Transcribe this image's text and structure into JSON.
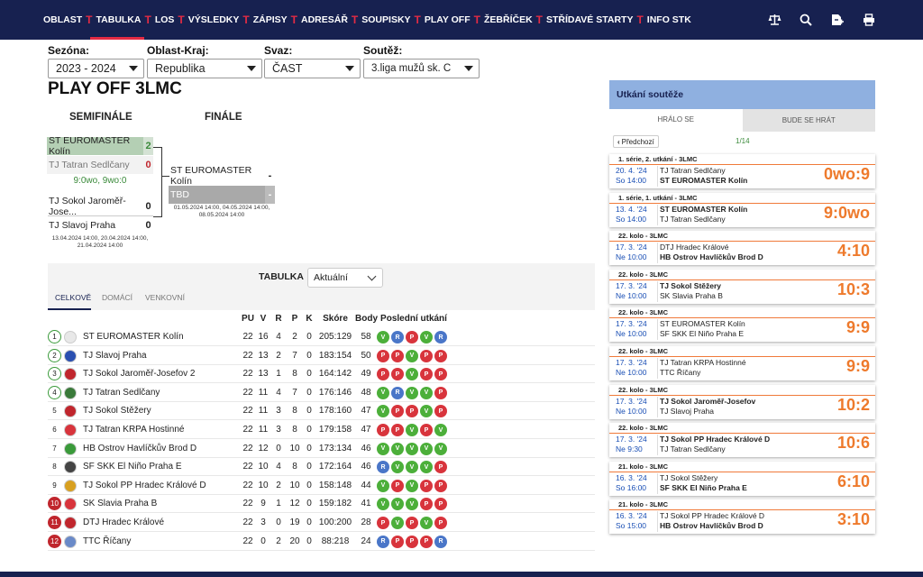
{
  "nav": {
    "items": [
      "OBLAST",
      "TABULKA",
      "LOS",
      "VÝSLEDKY",
      "ZÁPISY",
      "ADRESÁŘ",
      "SOUPISKY",
      "PLAY OFF",
      "ŽEBŘÍČEK",
      "STŘÍDAVÉ STARTY",
      "INFO STK"
    ],
    "active_index": 1,
    "separator": "T",
    "icons": [
      "scales-icon",
      "search-icon",
      "login-icon",
      "print-icon"
    ]
  },
  "filters": {
    "season": {
      "label": "Sezóna:",
      "value": "2023 - 2024"
    },
    "region": {
      "label": "Oblast-Kraj:",
      "value": "Republika"
    },
    "union": {
      "label": "Svaz:",
      "value": "ČAST"
    },
    "competition": {
      "label": "Soutěž:",
      "value": "3.liga mužů sk. C"
    }
  },
  "page_title": "PLAY OFF 3LMC",
  "bracket": {
    "semifinal_title": "SEMIFINÁLE",
    "final_title": "FINÁLE",
    "sf1": {
      "team1": "ST EUROMASTER Kolín",
      "score1": "2",
      "team2": "TJ Tatran Sedlčany",
      "score2": "0",
      "note": "9:0wo, 9wo:0"
    },
    "sf2": {
      "team1": "TJ Sokol Jaroměř-Jose...",
      "score1": "0",
      "team2": "TJ Slavoj Praha",
      "score2": "0",
      "dates": "13.04.2024 14:00, 20.04.2024 14:00, 21.04.2024 14:00"
    },
    "final": {
      "team1": "ST EUROMASTER Kolín",
      "score1": "-",
      "team2": "TBD",
      "score2": "-",
      "dates": "01.05.2024 14:00, 04.05.2024 14:00, 08.05.2024 14:00"
    }
  },
  "table": {
    "title": "TABULKA",
    "select_value": "Aktuální",
    "tabs": [
      "CELKOVĚ",
      "DOMÁCÍ",
      "VENKOVNÍ"
    ],
    "columns": [
      "PU",
      "V",
      "R",
      "P",
      "K",
      "Skóre",
      "Body",
      "Poslední utkání"
    ],
    "rows": [
      {
        "rank": "1",
        "team": "ST EUROMASTER Kolín",
        "pu": "22",
        "v": "16",
        "r": "4",
        "p": "2",
        "k": "0",
        "score": "205:129",
        "points": "58",
        "form": [
          "V",
          "R",
          "P",
          "V",
          "R"
        ],
        "rank_style": "g",
        "logo_color": "#e8e8e8"
      },
      {
        "rank": "2",
        "team": "TJ Slavoj Praha",
        "pu": "22",
        "v": "13",
        "r": "2",
        "p": "7",
        "k": "0",
        "score": "183:154",
        "points": "50",
        "form": [
          "P",
          "P",
          "V",
          "P",
          "P"
        ],
        "rank_style": "g",
        "logo_color": "#2a4fb0"
      },
      {
        "rank": "3",
        "team": "TJ Sokol Jaroměř-Josefov 2",
        "pu": "22",
        "v": "13",
        "r": "1",
        "p": "8",
        "k": "0",
        "score": "164:142",
        "points": "49",
        "form": [
          "P",
          "P",
          "V",
          "P",
          "P"
        ],
        "rank_style": "g",
        "logo_color": "#c0262d"
      },
      {
        "rank": "4",
        "team": "TJ Tatran Sedlčany",
        "pu": "22",
        "v": "11",
        "r": "4",
        "p": "7",
        "k": "0",
        "score": "176:146",
        "points": "48",
        "form": [
          "V",
          "R",
          "V",
          "V",
          "P"
        ],
        "rank_style": "g",
        "logo_color": "#3a7a3a"
      },
      {
        "rank": "5",
        "team": "TJ Sokol Stěžery",
        "pu": "22",
        "v": "11",
        "r": "3",
        "p": "8",
        "k": "0",
        "score": "178:160",
        "points": "47",
        "form": [
          "V",
          "P",
          "P",
          "V",
          "P"
        ],
        "rank_style": "n",
        "logo_color": "#c0262d"
      },
      {
        "rank": "6",
        "team": "TJ Tatran KRPA Hostinné",
        "pu": "22",
        "v": "11",
        "r": "3",
        "p": "8",
        "k": "0",
        "score": "179:158",
        "points": "47",
        "form": [
          "P",
          "P",
          "V",
          "P",
          "V"
        ],
        "rank_style": "n",
        "logo_color": "#d8343c"
      },
      {
        "rank": "7",
        "team": "HB Ostrov Havlíčkův Brod D",
        "pu": "22",
        "v": "12",
        "r": "0",
        "p": "10",
        "k": "0",
        "score": "173:134",
        "points": "46",
        "form": [
          "V",
          "V",
          "V",
          "V",
          "V"
        ],
        "rank_style": "n",
        "logo_color": "#3a9a3a"
      },
      {
        "rank": "8",
        "team": "SF SKK El Niño Praha E",
        "pu": "22",
        "v": "10",
        "r": "4",
        "p": "8",
        "k": "0",
        "score": "172:164",
        "points": "46",
        "form": [
          "R",
          "V",
          "V",
          "V",
          "P"
        ],
        "rank_style": "n",
        "logo_color": "#444"
      },
      {
        "rank": "9",
        "team": "TJ Sokol PP Hradec Králové D",
        "pu": "22",
        "v": "10",
        "r": "2",
        "p": "10",
        "k": "0",
        "score": "158:148",
        "points": "44",
        "form": [
          "V",
          "P",
          "V",
          "P",
          "P"
        ],
        "rank_style": "n",
        "logo_color": "#d8a020"
      },
      {
        "rank": "10",
        "team": "SK Slavia Praha B",
        "pu": "22",
        "v": "9",
        "r": "1",
        "p": "12",
        "k": "0",
        "score": "159:182",
        "points": "41",
        "form": [
          "V",
          "V",
          "V",
          "P",
          "P"
        ],
        "rank_style": "r",
        "logo_color": "#d8343c"
      },
      {
        "rank": "11",
        "team": "DTJ Hradec Králové",
        "pu": "22",
        "v": "3",
        "r": "0",
        "p": "19",
        "k": "0",
        "score": "100:200",
        "points": "28",
        "form": [
          "P",
          "V",
          "P",
          "V",
          "P"
        ],
        "rank_style": "r",
        "logo_color": "#c0262d"
      },
      {
        "rank": "12",
        "team": "TTC Říčany",
        "pu": "22",
        "v": "0",
        "r": "2",
        "p": "20",
        "k": "0",
        "score": "88:218",
        "points": "24",
        "form": [
          "R",
          "P",
          "P",
          "P",
          "R"
        ],
        "rank_style": "r",
        "logo_color": "#6a8ac8"
      }
    ]
  },
  "matches": {
    "title": "Utkání soutěže",
    "tabs": [
      "HRÁLO SE",
      "BUDE SE HRÁT"
    ],
    "prev_label": "Předchozí",
    "page": "1/14",
    "items": [
      {
        "round": "1. série, 2. utkání - 3LMC",
        "date": "20. 4. '24",
        "time": "So 14:00",
        "home": "TJ Tatran Sedlčany",
        "away": "ST EUROMASTER Kolín",
        "winner": "away",
        "score": "0wo:9"
      },
      {
        "round": "1. série, 1. utkání - 3LMC",
        "date": "13. 4. '24",
        "time": "So 14:00",
        "home": "ST EUROMASTER Kolín",
        "away": "TJ Tatran Sedlčany",
        "winner": "home",
        "score": "9:0wo"
      },
      {
        "round": "22. kolo - 3LMC",
        "date": "17. 3. '24",
        "time": "Ne 10:00",
        "home": "DTJ Hradec Králové",
        "away": "HB Ostrov Havlíčkův Brod D",
        "winner": "away",
        "score": "4:10"
      },
      {
        "round": "22. kolo - 3LMC",
        "date": "17. 3. '24",
        "time": "Ne 10:00",
        "home": "TJ Sokol Stěžery",
        "away": "SK Slavia Praha B",
        "winner": "home",
        "score": "10:3"
      },
      {
        "round": "22. kolo - 3LMC",
        "date": "17. 3. '24",
        "time": "Ne 10:00",
        "home": "ST EUROMASTER Kolín",
        "away": "SF SKK El Niño Praha E",
        "winner": "none",
        "score": "9:9"
      },
      {
        "round": "22. kolo - 3LMC",
        "date": "17. 3. '24",
        "time": "Ne 10:00",
        "home": "TJ Tatran KRPA Hostinné",
        "away": "TTC Říčany",
        "winner": "none",
        "score": "9:9"
      },
      {
        "round": "22. kolo - 3LMC",
        "date": "17. 3. '24",
        "time": "Ne 10:00",
        "home": "TJ Sokol Jaroměř-Josefov",
        "away": "TJ Slavoj Praha",
        "winner": "home",
        "score": "10:2"
      },
      {
        "round": "22. kolo - 3LMC",
        "date": "17. 3. '24",
        "time": "Ne 9:30",
        "home": "TJ Sokol PP Hradec Králové D",
        "away": "TJ Tatran Sedlčany",
        "winner": "home",
        "score": "10:6"
      },
      {
        "round": "21. kolo - 3LMC",
        "date": "16. 3. '24",
        "time": "So 16:00",
        "home": "TJ Sokol Stěžery",
        "away": "SF SKK El Niño Praha E",
        "winner": "away",
        "score": "6:10"
      },
      {
        "round": "21. kolo - 3LMC",
        "date": "16. 3. '24",
        "time": "So 15:00",
        "home": "TJ Sokol PP Hradec Králové D",
        "away": "HB Ostrov Havlíčkův Brod D",
        "winner": "away",
        "score": "3:10"
      }
    ]
  }
}
